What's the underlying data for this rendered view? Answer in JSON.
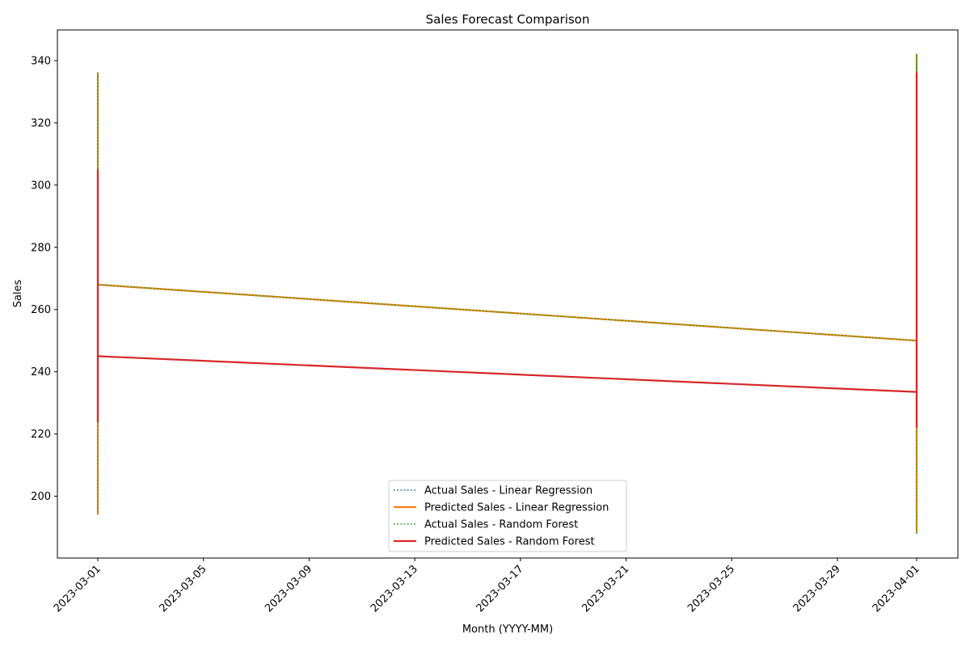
{
  "chart_data": {
    "type": "line",
    "title": "Sales Forecast Comparison",
    "xlabel": "Month (YYYY-MM)",
    "ylabel": "Sales",
    "x_axis_type": "date",
    "xlim": [
      "2023-02-26",
      "2023-04-02"
    ],
    "ylim": [
      182,
      350
    ],
    "x_ticks": [
      "2023-03-01",
      "2023-03-05",
      "2023-03-09",
      "2023-03-13",
      "2023-03-17",
      "2023-03-21",
      "2023-03-25",
      "2023-03-29",
      "2023-04-01"
    ],
    "y_ticks": [
      200,
      220,
      240,
      260,
      280,
      300,
      320,
      340
    ],
    "grid": false,
    "legend_position": "bottom-center",
    "series": [
      {
        "name": "Actual Sales - Linear Regression",
        "color": "#1f77b4",
        "style": "dotted",
        "points": [
          {
            "x": "2023-03-01",
            "y": 195
          },
          {
            "x": "2023-03-01",
            "y": 336
          },
          {
            "x": "2023-03-01",
            "y": 268
          },
          {
            "x": "2023-04-01",
            "y": 250
          },
          {
            "x": "2023-04-01",
            "y": 342
          },
          {
            "x": "2023-04-01",
            "y": 188
          }
        ]
      },
      {
        "name": "Predicted Sales - Linear Regression",
        "color": "#ff7f0e",
        "style": "solid",
        "points": [
          {
            "x": "2023-03-01",
            "y": 194
          },
          {
            "x": "2023-03-01",
            "y": 336
          },
          {
            "x": "2023-03-01",
            "y": 268
          },
          {
            "x": "2023-04-01",
            "y": 250
          },
          {
            "x": "2023-04-01",
            "y": 342
          },
          {
            "x": "2023-04-01",
            "y": 188
          }
        ]
      },
      {
        "name": "Actual Sales - Random Forest",
        "color": "#2ca02c",
        "style": "dotted",
        "points": [
          {
            "x": "2023-03-01",
            "y": 195
          },
          {
            "x": "2023-03-01",
            "y": 336
          },
          {
            "x": "2023-03-01",
            "y": 268
          },
          {
            "x": "2023-04-01",
            "y": 250
          },
          {
            "x": "2023-04-01",
            "y": 342
          },
          {
            "x": "2023-04-01",
            "y": 188
          }
        ]
      },
      {
        "name": "Predicted Sales - Random Forest",
        "color": "#d62728",
        "style": "solid",
        "points": [
          {
            "x": "2023-03-01",
            "y": 305
          },
          {
            "x": "2023-03-01",
            "y": 224
          },
          {
            "x": "2023-03-01",
            "y": 264
          },
          {
            "x": "2023-03-01",
            "y": 245
          },
          {
            "x": "2023-04-01",
            "y": 233.5
          },
          {
            "x": "2023-04-01",
            "y": 336
          },
          {
            "x": "2023-04-01",
            "y": 222
          }
        ]
      }
    ]
  }
}
